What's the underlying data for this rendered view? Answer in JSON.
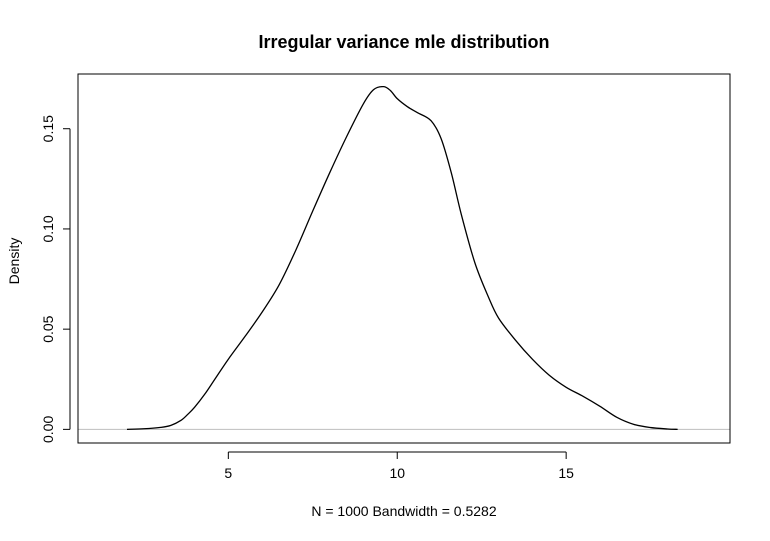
{
  "chart_data": {
    "type": "line",
    "title": "Irregular variance mle distribution",
    "xlabel": "N = 1000   Bandwidth = 0.5282",
    "ylabel": "Density",
    "xlim": [
      0.55,
      19.85
    ],
    "ylim": [
      -0.0068,
      0.1773
    ],
    "x_ticks": [
      5,
      10,
      15
    ],
    "x_tick_labels": [
      "5",
      "10",
      "15"
    ],
    "y_ticks": [
      0.0,
      0.05,
      0.1,
      0.15
    ],
    "y_tick_labels": [
      "0.00",
      "0.05",
      "0.10",
      "0.15"
    ],
    "baseline": 0,
    "grid": false,
    "legend": "none",
    "colors": {
      "line": "#000000",
      "baseline": "#bebebe",
      "frame": "#000000"
    },
    "series": [
      {
        "x": [
          2.0,
          2.5,
          3.0,
          3.3,
          3.6,
          3.8,
          4.0,
          4.3,
          4.6,
          5.0,
          5.5,
          6.0,
          6.5,
          7.0,
          7.5,
          8.0,
          8.5,
          9.0,
          9.3,
          9.6,
          9.8,
          10.0,
          10.3,
          10.6,
          11.0,
          11.3,
          11.6,
          11.9,
          12.3,
          12.7,
          13.0,
          13.5,
          14.0,
          14.5,
          15.0,
          15.5,
          16.0,
          16.5,
          17.0,
          17.5,
          18.0,
          18.3
        ],
        "y": [
          0.0,
          0.0003,
          0.001,
          0.002,
          0.0045,
          0.0075,
          0.011,
          0.0175,
          0.025,
          0.035,
          0.0465,
          0.0585,
          0.072,
          0.0895,
          0.109,
          0.128,
          0.146,
          0.1625,
          0.1695,
          0.171,
          0.169,
          0.165,
          0.161,
          0.158,
          0.154,
          0.145,
          0.128,
          0.107,
          0.083,
          0.066,
          0.0555,
          0.0445,
          0.035,
          0.027,
          0.021,
          0.0165,
          0.0115,
          0.006,
          0.0025,
          0.0009,
          0.0002,
          0.0
        ]
      }
    ]
  }
}
